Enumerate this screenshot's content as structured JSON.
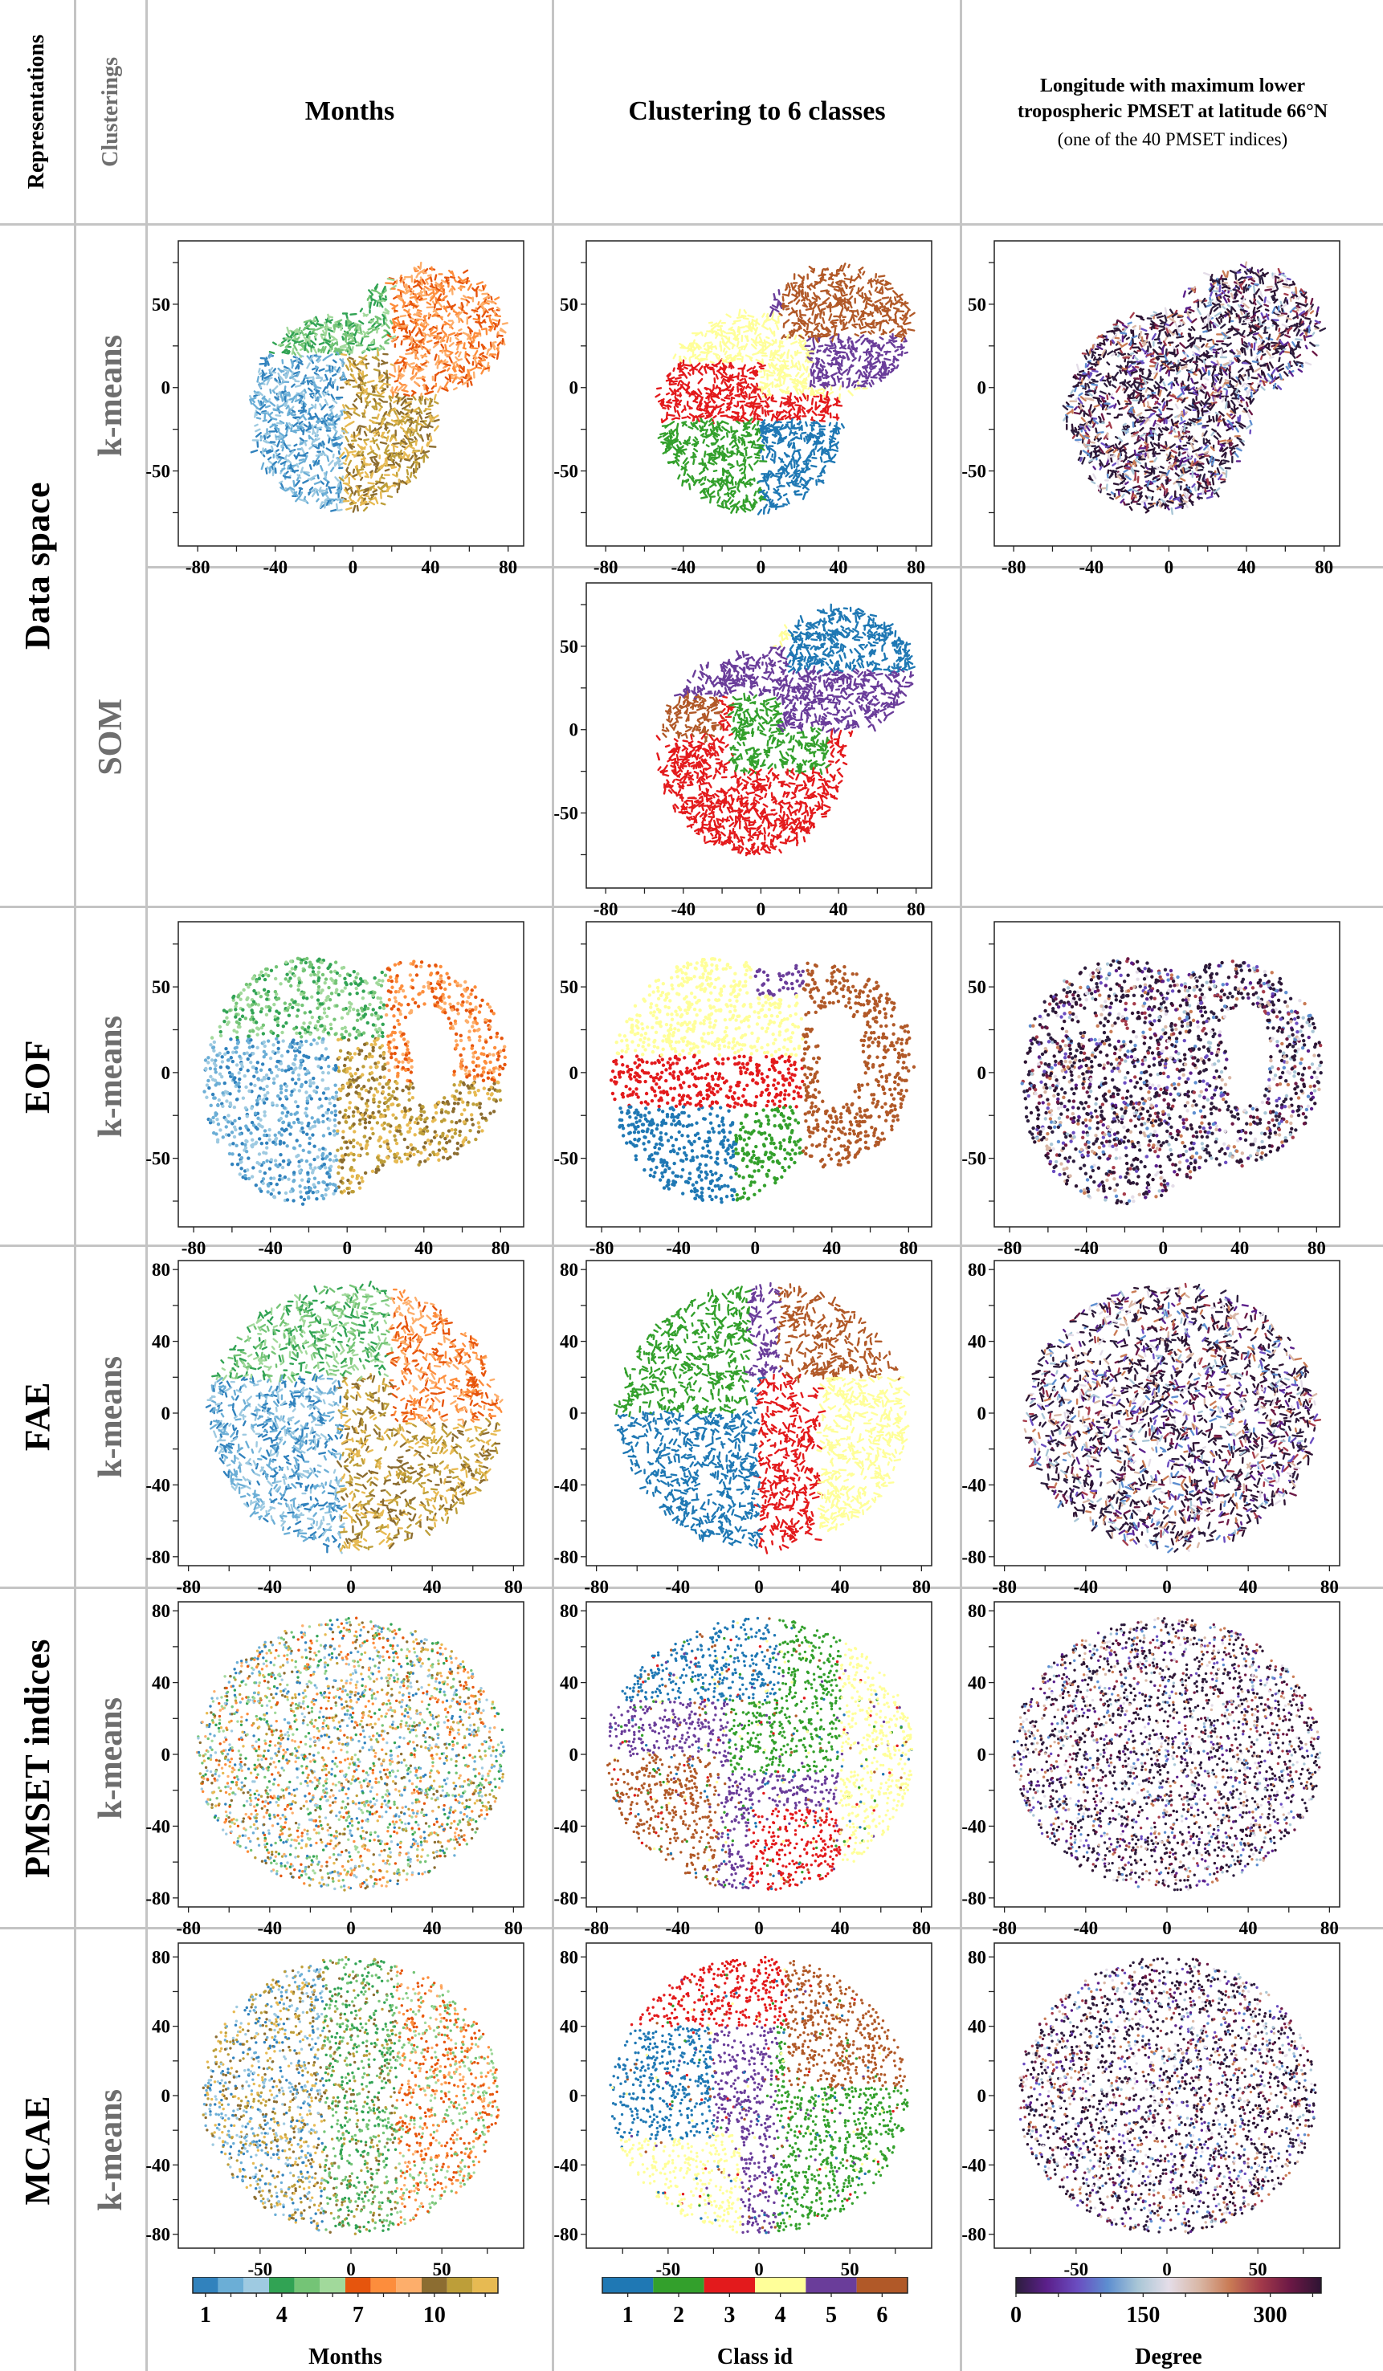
{
  "header": {
    "representations_label": "Representations",
    "clusterings_label": "Clusterings",
    "columns": [
      {
        "title": "Months"
      },
      {
        "title": "Clustering to 6 classes"
      },
      {
        "title_line1": "Longitude with maximum lower",
        "title_line2": "tropospheric PMSET at latitude 66°N",
        "subtitle": "(one of the 40 PMSET indices)"
      }
    ]
  },
  "rows": [
    {
      "representation": "Data space",
      "clustering": "k-means"
    },
    {
      "representation": "",
      "clustering": "SOM"
    },
    {
      "representation": "EOF",
      "clustering": "k-means"
    },
    {
      "representation": "FAE",
      "clustering": "k-means"
    },
    {
      "representation": "PMSET indices",
      "clustering": "k-means"
    },
    {
      "representation": "MCAE",
      "clustering": "k-means"
    }
  ],
  "colors": {
    "months": [
      "#3182bd",
      "#6baed6",
      "#9ecae1",
      "#31a354",
      "#74c476",
      "#a1d99b",
      "#e6550d",
      "#fd8d3c",
      "#fdae6b",
      "#8c6d31",
      "#bd9e39",
      "#e7ba52"
    ],
    "classes": [
      "#1f78b4",
      "#33a02c",
      "#e31a1c",
      "#ffff99",
      "#6a3d9a",
      "#b15928"
    ],
    "degree": [
      "#2d1e3e",
      "#5b1f8a",
      "#6a4cc0",
      "#5d8ed0",
      "#a9c6d6",
      "#e4dde8",
      "#d9b7a6",
      "#c97b55",
      "#a33a4a",
      "#6b1845",
      "#2d1433"
    ]
  },
  "chart_data": [
    {
      "type": "scatter",
      "id": "dataspace-kmeans-months",
      "row": "Data space / k-means",
      "column": "Months",
      "color_by": "month",
      "xlim": [
        -90,
        88
      ],
      "ylim": [
        -95,
        88
      ],
      "xticks": [
        -80,
        -40,
        0,
        40,
        80
      ],
      "yticks": [
        -50,
        0,
        50
      ],
      "regions": [
        {
          "label": "Jan-Mar",
          "approx_center": [
            -20,
            -40
          ]
        },
        {
          "label": "Apr-Jun",
          "approx_center": [
            -25,
            35
          ]
        },
        {
          "label": "Jul-Sep",
          "approx_center": [
            50,
            35
          ]
        },
        {
          "label": "Oct-Dec",
          "approx_center": [
            15,
            -15
          ]
        }
      ]
    },
    {
      "type": "scatter",
      "id": "dataspace-kmeans-classes",
      "row": "Data space / k-means",
      "column": "Clustering to 6 classes",
      "color_by": "class",
      "xlim": [
        -90,
        88
      ],
      "ylim": [
        -95,
        88
      ],
      "xticks": [
        -80,
        -40,
        0,
        40,
        80
      ],
      "yticks": [
        -50,
        0,
        50
      ],
      "regions": [
        {
          "class": 1,
          "approx_center": [
            15,
            -50
          ]
        },
        {
          "class": 2,
          "approx_center": [
            -30,
            -45
          ]
        },
        {
          "class": 3,
          "approx_center": [
            -10,
            0
          ]
        },
        {
          "class": 4,
          "approx_center": [
            -30,
            30
          ]
        },
        {
          "class": 5,
          "approx_center": [
            -20,
            55
          ]
        },
        {
          "class": 6,
          "approx_center": [
            40,
            55
          ]
        }
      ]
    },
    {
      "type": "scatter",
      "id": "dataspace-kmeans-degree",
      "row": "Data space / k-means",
      "column": "Longitude (degree)",
      "color_by": "degree",
      "xlim": [
        -90,
        88
      ],
      "ylim": [
        -95,
        88
      ],
      "xticks": [
        -80,
        -40,
        0,
        40,
        80
      ],
      "yticks": [
        -50,
        0,
        50
      ]
    },
    {
      "type": "scatter",
      "id": "som-classes",
      "row": "Data space / SOM",
      "column": "Clustering to 6 classes",
      "color_by": "class",
      "xlim": [
        -90,
        88
      ],
      "ylim": [
        -95,
        88
      ],
      "xticks": [
        -80,
        -40,
        0,
        40,
        80
      ],
      "yticks": [
        -50,
        0,
        50
      ],
      "regions": [
        {
          "class": 1,
          "approx_center": [
            40,
            50
          ]
        },
        {
          "class": 2,
          "approx_center": [
            5,
            -10
          ]
        },
        {
          "class": 3,
          "approx_center": [
            -10,
            -40
          ]
        },
        {
          "class": 4,
          "approx_center": [
            -20,
            55
          ]
        },
        {
          "class": 5,
          "approx_center": [
            -30,
            30
          ]
        },
        {
          "class": 6,
          "approx_center": [
            -50,
            10
          ]
        }
      ]
    },
    {
      "type": "scatter",
      "id": "eof-kmeans-months",
      "row": "EOF / k-means",
      "column": "Months",
      "color_by": "month",
      "xlim": [
        -88,
        92
      ],
      "ylim": [
        -90,
        88
      ],
      "xticks": [
        -80,
        -40,
        0,
        40,
        80
      ],
      "yticks": [
        -50,
        0,
        50
      ]
    },
    {
      "type": "scatter",
      "id": "eof-kmeans-classes",
      "row": "EOF / k-means",
      "column": "Clustering to 6 classes",
      "color_by": "class",
      "xlim": [
        -88,
        92
      ],
      "ylim": [
        -90,
        88
      ],
      "xticks": [
        -80,
        -40,
        0,
        40,
        80
      ],
      "yticks": [
        -50,
        0,
        50
      ]
    },
    {
      "type": "scatter",
      "id": "eof-kmeans-degree",
      "row": "EOF / k-means",
      "column": "Longitude (degree)",
      "color_by": "degree",
      "xlim": [
        -88,
        92
      ],
      "ylim": [
        -90,
        88
      ],
      "xticks": [
        -80,
        -40,
        0,
        40,
        80
      ],
      "yticks": [
        -50,
        0,
        50
      ]
    },
    {
      "type": "scatter",
      "id": "fae-kmeans-months",
      "row": "FAE / k-means",
      "column": "Months",
      "color_by": "month",
      "xlim": [
        -85,
        85
      ],
      "ylim": [
        -85,
        85
      ],
      "xticks": [
        -80,
        -40,
        0,
        40,
        80
      ],
      "yticks": [
        -80,
        -40,
        0,
        40,
        80
      ]
    },
    {
      "type": "scatter",
      "id": "fae-kmeans-classes",
      "row": "FAE / k-means",
      "column": "Clustering to 6 classes",
      "color_by": "class",
      "xlim": [
        -85,
        85
      ],
      "ylim": [
        -85,
        85
      ],
      "xticks": [
        -80,
        -40,
        0,
        40,
        80
      ],
      "yticks": [
        -80,
        -40,
        0,
        40,
        80
      ]
    },
    {
      "type": "scatter",
      "id": "fae-kmeans-degree",
      "row": "FAE / k-means",
      "column": "Longitude (degree)",
      "color_by": "degree",
      "xlim": [
        -85,
        85
      ],
      "ylim": [
        -85,
        85
      ],
      "xticks": [
        -80,
        -40,
        0,
        40,
        80
      ],
      "yticks": [
        -80,
        -40,
        0,
        40,
        80
      ]
    },
    {
      "type": "scatter",
      "id": "pmset-kmeans-months",
      "row": "PMSET indices / k-means",
      "column": "Months",
      "color_by": "month",
      "xlim": [
        -85,
        85
      ],
      "ylim": [
        -85,
        85
      ],
      "xticks": [
        -80,
        -40,
        0,
        40,
        80
      ],
      "yticks": [
        -80,
        -40,
        0,
        40,
        80
      ]
    },
    {
      "type": "scatter",
      "id": "pmset-kmeans-classes",
      "row": "PMSET indices / k-means",
      "column": "Clustering to 6 classes",
      "color_by": "class",
      "xlim": [
        -85,
        85
      ],
      "ylim": [
        -85,
        85
      ],
      "xticks": [
        -80,
        -40,
        0,
        40,
        80
      ],
      "yticks": [
        -80,
        -40,
        0,
        40,
        80
      ]
    },
    {
      "type": "scatter",
      "id": "pmset-kmeans-degree",
      "row": "PMSET indices / k-means",
      "column": "Longitude (degree)",
      "color_by": "degree",
      "xlim": [
        -85,
        85
      ],
      "ylim": [
        -85,
        85
      ],
      "xticks": [
        -80,
        -40,
        0,
        40,
        80
      ],
      "yticks": [
        -80,
        -40,
        0,
        40,
        80
      ]
    },
    {
      "type": "scatter",
      "id": "mcae-kmeans-months",
      "row": "MCAE / k-means",
      "column": "Months",
      "color_by": "month",
      "xlim": [
        -95,
        95
      ],
      "ylim": [
        -88,
        88
      ],
      "xticks": [
        -50,
        0,
        50
      ],
      "yticks": [
        -80,
        -40,
        0,
        40,
        80
      ]
    },
    {
      "type": "scatter",
      "id": "mcae-kmeans-classes",
      "row": "MCAE / k-means",
      "column": "Clustering to 6 classes",
      "color_by": "class",
      "xlim": [
        -95,
        95
      ],
      "ylim": [
        -88,
        88
      ],
      "xticks": [
        -50,
        0,
        50
      ],
      "yticks": [
        -80,
        -40,
        0,
        40,
        80
      ]
    },
    {
      "type": "scatter",
      "id": "mcae-kmeans-degree",
      "row": "MCAE / k-means",
      "column": "Longitude (degree)",
      "color_by": "degree",
      "xlim": [
        -95,
        95
      ],
      "ylim": [
        -88,
        88
      ],
      "xticks": [
        -50,
        0,
        50
      ],
      "yticks": [
        -80,
        -40,
        0,
        40,
        80
      ]
    }
  ],
  "colorbars": [
    {
      "title": "Months",
      "type": "discrete",
      "n": 12,
      "tick_labels": [
        "1",
        "4",
        "7",
        "10"
      ],
      "tick_values": [
        1,
        4,
        7,
        10
      ]
    },
    {
      "title": "Class id",
      "type": "discrete",
      "n": 6,
      "tick_labels": [
        "1",
        "2",
        "3",
        "4",
        "5",
        "6"
      ],
      "tick_values": [
        1,
        2,
        3,
        4,
        5,
        6
      ]
    },
    {
      "title": "Degree",
      "type": "continuous",
      "range": [
        0,
        360
      ],
      "tick_labels": [
        "0",
        "150",
        "300"
      ],
      "tick_values": [
        0,
        150,
        300
      ]
    }
  ]
}
